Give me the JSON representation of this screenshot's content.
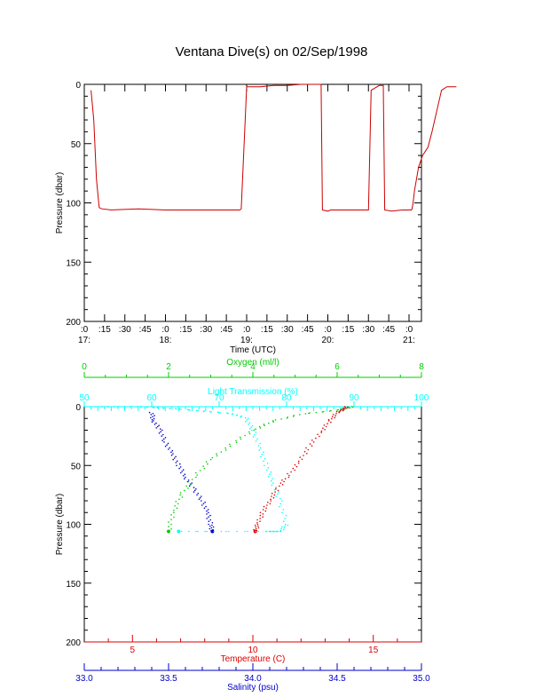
{
  "title": "Ventana Dive(s) on 02/Sep/1998",
  "colors": {
    "axis": "#000000",
    "pressure_trace": "#cc0000",
    "oxygen": "#00cc00",
    "light": "#00ffff",
    "temperature": "#dd0000",
    "salinity": "#0000cc"
  },
  "chart_data": [
    {
      "type": "line",
      "title": "Ventana Dive(s) on 02/Sep/1998",
      "xlabel": "Time (UTC)",
      "ylabel": "Pressure (dbar)",
      "ylim": [
        200,
        0
      ],
      "yticks": [
        "0",
        "50",
        "100",
        "150",
        "200"
      ],
      "xticks": [
        {
          "minute": ":0",
          "hour": "17:"
        },
        {
          "minute": ":15",
          "hour": ""
        },
        {
          "minute": ":30",
          "hour": ""
        },
        {
          "minute": ":45",
          "hour": ""
        },
        {
          "minute": ":0",
          "hour": "18:"
        },
        {
          "minute": ":15",
          "hour": ""
        },
        {
          "minute": ":30",
          "hour": ""
        },
        {
          "minute": ":45",
          "hour": ""
        },
        {
          "minute": ":0",
          "hour": "19:"
        },
        {
          "minute": ":15",
          "hour": ""
        },
        {
          "minute": ":30",
          "hour": ""
        },
        {
          "minute": ":45",
          "hour": ""
        },
        {
          "minute": ":0",
          "hour": "20:"
        },
        {
          "minute": ":15",
          "hour": ""
        },
        {
          "minute": ":30",
          "hour": ""
        },
        {
          "minute": ":45",
          "hour": ""
        },
        {
          "minute": ":0",
          "hour": "21:"
        }
      ],
      "xlim_minutes": [
        0,
        245
      ],
      "series": [
        {
          "x": [
            5,
            7,
            9,
            11,
            13,
            20,
            40,
            60,
            80,
            90,
            100,
            110,
            115,
            116,
            120,
            130,
            140,
            150,
            160,
            170,
            175,
            176,
            180,
            182,
            184,
            190,
            200,
            210,
            212,
            218,
            221,
            222,
            227,
            235,
            240,
            242
          ],
          "y": [
            5,
            30,
            80,
            104,
            105,
            106,
            105,
            106,
            106,
            106,
            106,
            106,
            106,
            105,
            2,
            2,
            1,
            1,
            0,
            0,
            0,
            106,
            107,
            106,
            106,
            106,
            106,
            106,
            5,
            1,
            1,
            106,
            107,
            106,
            106,
            106
          ]
        },
        {
          "x": [
            242,
            243,
            244,
            247,
            250,
            254,
            257,
            263,
            264,
            268,
            275
          ],
          "y": [
            106,
            100,
            90,
            70,
            60,
            53,
            40,
            10,
            5,
            2,
            2
          ]
        }
      ]
    },
    {
      "type": "scatter",
      "ylabel": "Pressure (dbar)",
      "ylim": [
        200,
        0
      ],
      "yticks": [
        "0",
        "50",
        "100",
        "150",
        "200"
      ],
      "axes": {
        "oxygen": {
          "label": "Oxygen (ml/l)",
          "range": [
            0,
            8
          ],
          "ticks": [
            "0",
            "2",
            "4",
            "6",
            "8"
          ]
        },
        "light": {
          "label": "Light Transmission (%)",
          "range": [
            50,
            100
          ],
          "ticks": [
            "50",
            "60",
            "70",
            "80",
            "90",
            "100"
          ]
        },
        "temperature": {
          "label": "Temperature (C)",
          "range": [
            3,
            17
          ],
          "ticks": [
            "5",
            "10",
            "15"
          ]
        },
        "salinity": {
          "label": "Salinity (psu)",
          "range": [
            33.0,
            35.0
          ],
          "ticks": [
            "33.0",
            "33.5",
            "34.0",
            "34.5",
            "35.0"
          ]
        }
      },
      "series": [
        {
          "name": "Temperature",
          "x": [
            13.9,
            13.8,
            13.5,
            13.2,
            12.8,
            12.3,
            11.9,
            11.4,
            11.0,
            10.7,
            10.4,
            10.2,
            10.1
          ],
          "y": [
            0,
            2,
            5,
            12,
            22,
            35,
            48,
            60,
            70,
            80,
            90,
            100,
            106
          ]
        },
        {
          "name": "Salinity",
          "x": [
            33.4,
            33.41,
            33.45,
            33.48,
            33.52,
            33.56,
            33.6,
            33.65,
            33.7,
            33.73,
            33.75,
            33.76
          ],
          "y": [
            5,
            12,
            20,
            30,
            40,
            50,
            60,
            70,
            80,
            90,
            100,
            106
          ]
        },
        {
          "name": "Oxygen",
          "x": [
            6.4,
            6.0,
            5.2,
            4.5,
            4.0,
            3.5,
            3.0,
            2.6,
            2.3,
            2.1,
            2.0
          ],
          "y": [
            0,
            3,
            6,
            12,
            20,
            32,
            45,
            60,
            75,
            90,
            106
          ]
        },
        {
          "name": "Light Transmission",
          "x": [
            52,
            55,
            58,
            61,
            64,
            68,
            72,
            74,
            75,
            76,
            77,
            78,
            79,
            80,
            79,
            78,
            77,
            70,
            64
          ],
          "y": [
            0,
            0,
            0,
            1,
            2,
            4,
            6,
            10,
            20,
            35,
            50,
            65,
            80,
            100,
            106,
            106,
            106,
            106,
            106
          ]
        }
      ]
    }
  ]
}
